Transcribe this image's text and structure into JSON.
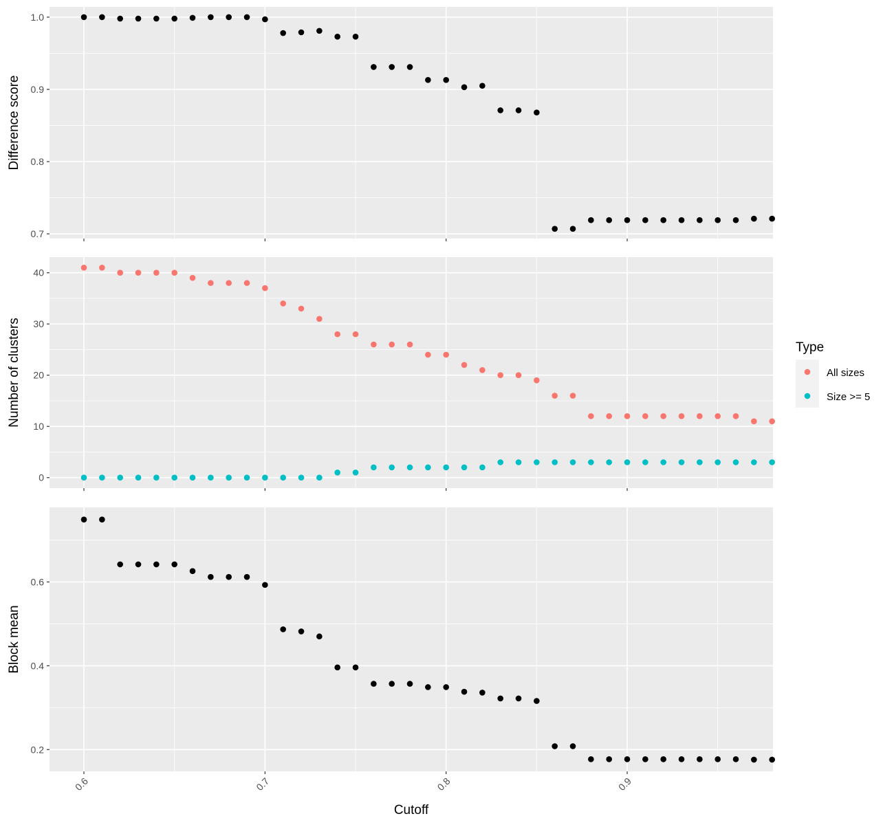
{
  "chart_data": {
    "type": "scatter",
    "x_label": "Cutoff",
    "x_ticks": [
      "0.6",
      "0.7",
      "0.8",
      "0.9"
    ],
    "x_range": [
      0.581,
      0.9805
    ],
    "x": [
      0.6,
      0.61,
      0.62,
      0.63,
      0.64,
      0.65,
      0.66,
      0.67,
      0.68,
      0.69,
      0.7,
      0.71,
      0.72,
      0.73,
      0.74,
      0.75,
      0.76,
      0.77,
      0.78,
      0.79,
      0.8,
      0.81,
      0.82,
      0.83,
      0.84,
      0.85,
      0.86,
      0.87,
      0.88,
      0.89,
      0.9,
      0.91,
      0.92,
      0.93,
      0.94,
      0.95,
      0.96,
      0.97,
      0.98
    ],
    "grid": true,
    "panels": [
      {
        "ylabel": "Difference score",
        "y_ticks": [
          "0.7",
          "0.8",
          "0.9",
          "1.0"
        ],
        "ylim": [
          0.6935,
          1.0142
        ],
        "series": [
          {
            "color": "#000000",
            "values": [
              1.0,
              1.0,
              0.998,
              0.998,
              0.998,
              0.998,
              0.999,
              1.0,
              1.0,
              1.0,
              0.997,
              0.978,
              0.979,
              0.981,
              0.973,
              0.973,
              0.931,
              0.931,
              0.931,
              0.913,
              0.913,
              0.903,
              0.905,
              0.871,
              0.871,
              0.868,
              0.707,
              0.707,
              0.719,
              0.719,
              0.719,
              0.719,
              0.719,
              0.719,
              0.719,
              0.719,
              0.719,
              0.721,
              0.721
            ]
          }
        ]
      },
      {
        "ylabel": "Number of clusters",
        "y_ticks": [
          "0",
          "10",
          "20",
          "30",
          "40"
        ],
        "ylim": [
          -2.05,
          43.05
        ],
        "series": [
          {
            "name": "All sizes",
            "color": "#F8766D",
            "values": [
              41,
              41,
              40,
              40,
              40,
              40,
              39,
              38,
              38,
              38,
              37,
              34,
              33,
              31,
              28,
              28,
              26,
              26,
              26,
              24,
              24,
              22,
              21,
              20,
              20,
              19,
              16,
              16,
              12,
              12,
              12,
              12,
              12,
              12,
              12,
              12,
              12,
              11,
              11
            ]
          },
          {
            "name": "Size >= 5",
            "color": "#00BFC4",
            "values": [
              0,
              0,
              0,
              0,
              0,
              0,
              0,
              0,
              0,
              0,
              0,
              0,
              0,
              0,
              1,
              1,
              2,
              2,
              2,
              2,
              2,
              2,
              2,
              3,
              3,
              3,
              3,
              3,
              3,
              3,
              3,
              3,
              3,
              3,
              3,
              3,
              3,
              3,
              3
            ]
          }
        ]
      },
      {
        "ylabel": "Block mean",
        "y_ticks": [
          "0.2",
          "0.4",
          "0.6"
        ],
        "ylim": [
          0.148,
          0.778
        ],
        "series": [
          {
            "color": "#000000",
            "values": [
              0.749,
              0.749,
              0.642,
              0.642,
              0.642,
              0.642,
              0.626,
              0.612,
              0.612,
              0.612,
              0.593,
              0.487,
              0.482,
              0.47,
              0.396,
              0.396,
              0.357,
              0.357,
              0.357,
              0.349,
              0.349,
              0.338,
              0.336,
              0.322,
              0.322,
              0.316,
              0.208,
              0.208,
              0.177,
              0.177,
              0.177,
              0.177,
              0.177,
              0.177,
              0.177,
              0.177,
              0.177,
              0.176,
              0.176
            ]
          }
        ]
      }
    ],
    "legend": {
      "title": "Type",
      "position": "right",
      "entries": [
        {
          "label": "All sizes",
          "color": "#F8766D"
        },
        {
          "label": "Size >= 5",
          "color": "#00BFC4"
        }
      ]
    }
  }
}
